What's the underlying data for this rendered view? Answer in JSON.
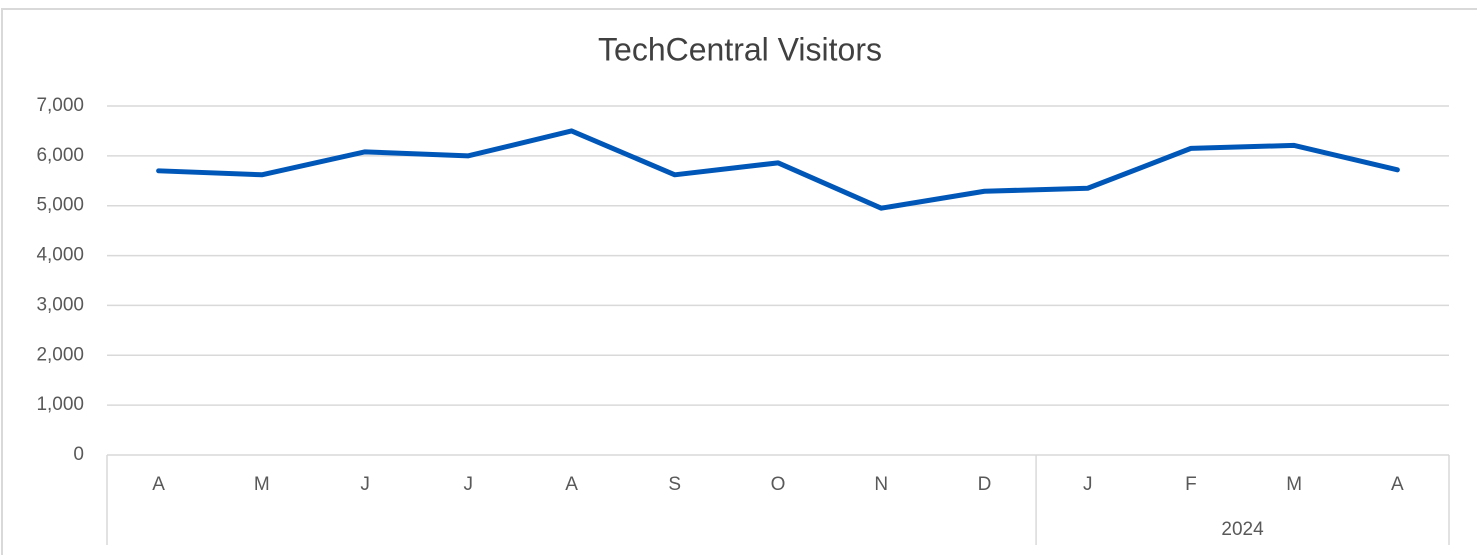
{
  "chart_data": {
    "type": "line",
    "title": "TechCentral Visitors",
    "categories": [
      "A",
      "M",
      "J",
      "J",
      "A",
      "S",
      "O",
      "N",
      "D",
      "J",
      "F",
      "M",
      "A"
    ],
    "groups": [
      {
        "label": "2024",
        "first": 9,
        "last": 12
      }
    ],
    "series": [
      {
        "name": "Visitors",
        "color": "#0057b8",
        "values": [
          5700,
          5620,
          6080,
          6000,
          6500,
          5620,
          5860,
          4950,
          5290,
          5350,
          6150,
          6210,
          5720
        ]
      }
    ],
    "ylim": [
      0,
      7000
    ],
    "yticks": [
      0,
      {
        "value": 1000,
        "label": "1,000"
      },
      {
        "value": 2000,
        "label": "2,000"
      },
      {
        "value": 3000,
        "label": "3,000"
      },
      {
        "value": 4000,
        "label": "4,000"
      },
      {
        "value": 5000,
        "label": "5,000"
      },
      {
        "value": 6000,
        "label": "6,000"
      },
      {
        "value": 7000,
        "label": "7,000"
      }
    ],
    "grid": true
  }
}
